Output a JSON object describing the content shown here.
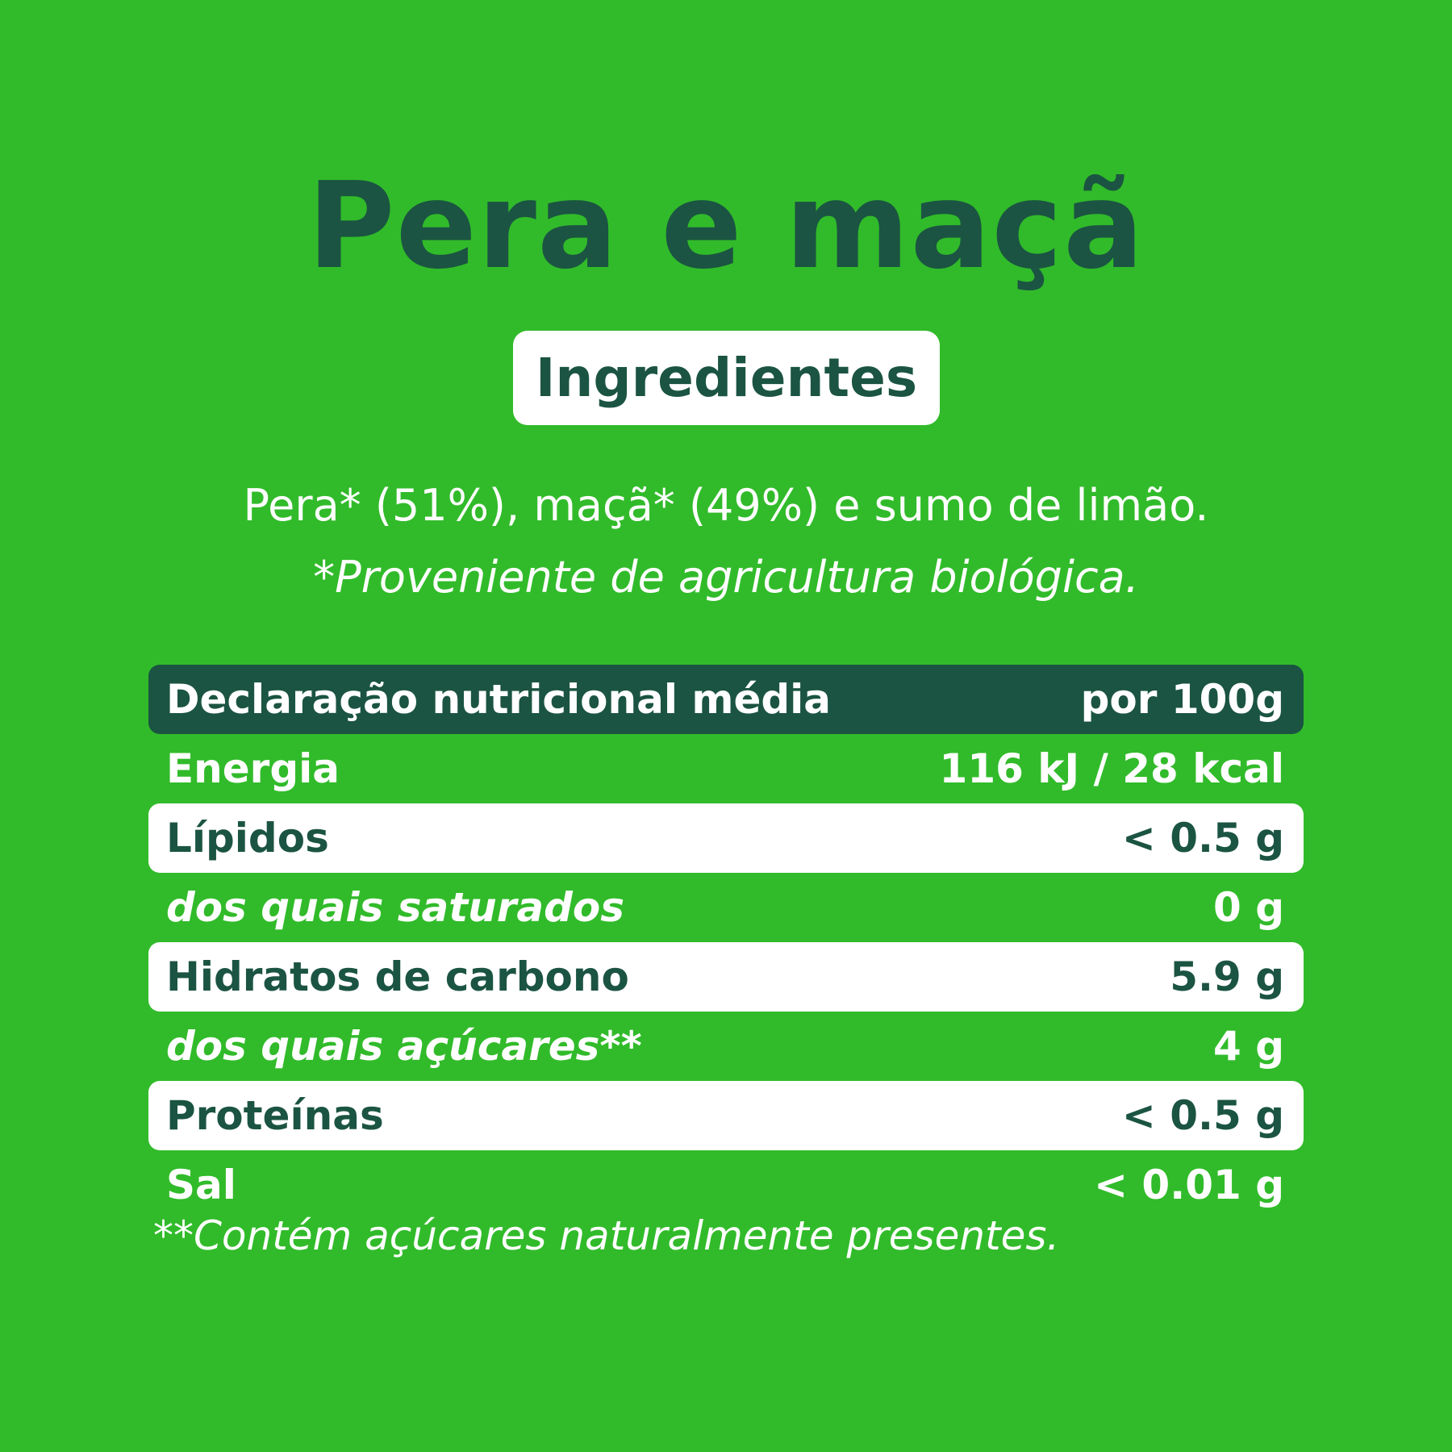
{
  "product": {
    "title": "Pera e maçã"
  },
  "ingredients": {
    "heading": "Ingredientes",
    "text": "Pera* (51%), maçã* (49%) e sumo de limão.",
    "organic_note": "*Proveniente de agricultura biológica."
  },
  "nutrition": {
    "header_label": "Declaração nutricional média",
    "header_unit": "por 100g",
    "rows": [
      {
        "label": "Energia",
        "value": "116 kJ / 28 kcal"
      },
      {
        "label": "Lípidos",
        "value": "< 0.5 g"
      },
      {
        "label": "dos quais saturados",
        "value": "0 g"
      },
      {
        "label": "Hidratos de carbono",
        "value": "5.9 g"
      },
      {
        "label": "dos quais açúcares**",
        "value": "4 g"
      },
      {
        "label": "Proteínas",
        "value": "< 0.5 g"
      },
      {
        "label": "Sal",
        "value": "< 0.01 g"
      }
    ],
    "footnote": "**Contém açúcares naturalmente presentes."
  },
  "colors": {
    "background": "#31bb2a",
    "dark_green": "#1b5442",
    "white": "#ffffff"
  }
}
